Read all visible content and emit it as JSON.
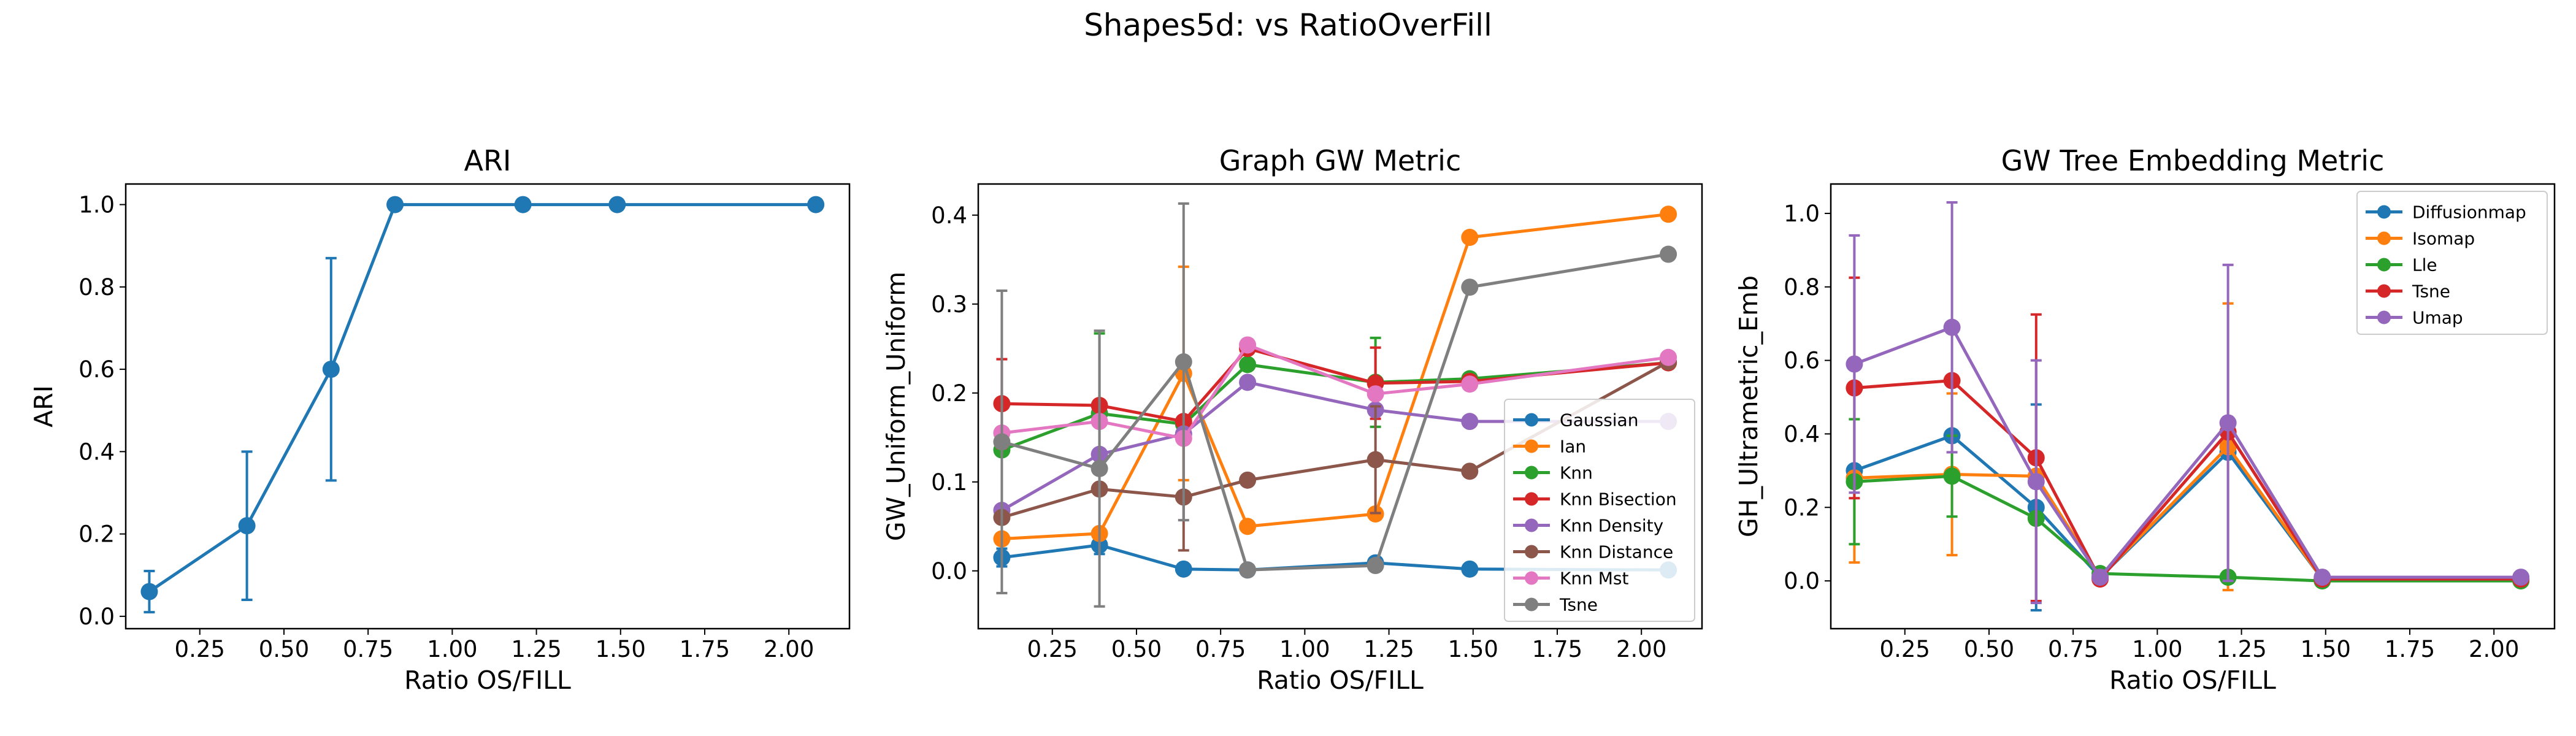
{
  "suptitle": "Shapes5d: vs RatioOverFill",
  "chart_data": [
    {
      "type": "line",
      "title": "ARI",
      "xlabel": "Ratio OS/FILL",
      "ylabel": "ARI",
      "xlim": [
        0.03,
        2.18
      ],
      "ylim": [
        -0.03,
        1.05
      ],
      "xticks": [
        0.25,
        0.5,
        0.75,
        1.0,
        1.25,
        1.5,
        1.75,
        2.0
      ],
      "xtick_labels": [
        "0.25",
        "0.50",
        "0.75",
        "1.00",
        "1.25",
        "1.50",
        "1.75",
        "2.00"
      ],
      "yticks": [
        0.0,
        0.2,
        0.4,
        0.6,
        0.8,
        1.0
      ],
      "ytick_labels": [
        "0.0",
        "0.2",
        "0.4",
        "0.6",
        "0.8",
        "1.0"
      ],
      "grid": false,
      "legend": null,
      "x": [
        0.1,
        0.39,
        0.64,
        0.83,
        1.21,
        1.49,
        2.08
      ],
      "series": [
        {
          "name": "",
          "color": "#1f77b4",
          "values": [
            0.06,
            0.22,
            0.6,
            1.0,
            1.0,
            1.0,
            1.0
          ],
          "err": [
            0.05,
            0.18,
            0.27,
            0,
            0,
            0,
            0
          ]
        }
      ]
    },
    {
      "type": "line",
      "title": "Graph GW Metric",
      "xlabel": "Ratio OS/FILL",
      "ylabel": "GW_Uniform_Uniform",
      "xlim": [
        0.03,
        2.18
      ],
      "ylim": [
        -0.065,
        0.435
      ],
      "xticks": [
        0.25,
        0.5,
        0.75,
        1.0,
        1.25,
        1.5,
        1.75,
        2.0
      ],
      "xtick_labels": [
        "0.25",
        "0.50",
        "0.75",
        "1.00",
        "1.25",
        "1.50",
        "1.75",
        "2.00"
      ],
      "yticks": [
        0.0,
        0.1,
        0.2,
        0.3,
        0.4
      ],
      "ytick_labels": [
        "0.0",
        "0.1",
        "0.2",
        "0.3",
        "0.4"
      ],
      "grid": false,
      "legend": "lower-right",
      "x": [
        0.1,
        0.39,
        0.64,
        0.83,
        1.21,
        1.49,
        2.08
      ],
      "series": [
        {
          "name": "Gaussian",
          "color": "#1f77b4",
          "values": [
            0.015,
            0.029,
            0.002,
            0.001,
            0.009,
            0.002,
            0.001
          ],
          "err": [
            0.01,
            0.01,
            0.0,
            0.0,
            0.0,
            0.0,
            0.0
          ]
        },
        {
          "name": "Ian",
          "color": "#ff7f0e",
          "values": [
            0.036,
            0.042,
            0.222,
            0.05,
            0.064,
            0.375,
            0.401
          ],
          "err": [
            0.0,
            0.0,
            0.12,
            0.0,
            0.0,
            0.0,
            0.0
          ]
        },
        {
          "name": "Knn",
          "color": "#2ca02c",
          "values": [
            0.136,
            0.177,
            0.165,
            0.232,
            0.212,
            0.216,
            0.234
          ],
          "err": [
            0.0,
            0.09,
            0.0,
            0.0,
            0.05,
            0.0,
            0.0
          ]
        },
        {
          "name": "Knn Bisection",
          "color": "#d62728",
          "values": [
            0.188,
            0.186,
            0.168,
            0.25,
            0.211,
            0.213,
            0.234
          ],
          "err": [
            0.05,
            0.0,
            0.0,
            0.0,
            0.04,
            0.0,
            0.0
          ]
        },
        {
          "name": "Knn Density",
          "color": "#9467bd",
          "values": [
            0.068,
            0.131,
            0.154,
            0.212,
            0.181,
            0.168,
            0.168
          ],
          "err": [
            0.0,
            0.0,
            0.0,
            0.0,
            0.0,
            0.0,
            0.0
          ]
        },
        {
          "name": "Knn Distance",
          "color": "#8c564b",
          "values": [
            0.06,
            0.092,
            0.083,
            0.102,
            0.125,
            0.112,
            0.235
          ],
          "err": [
            0.0,
            0.0,
            0.06,
            0.0,
            0.06,
            0.0,
            0.0
          ]
        },
        {
          "name": "Knn Mst",
          "color": "#e377c2",
          "values": [
            0.155,
            0.168,
            0.149,
            0.254,
            0.199,
            0.21,
            0.24
          ],
          "err": [
            0.0,
            0.0,
            0.0,
            0.0,
            0.0,
            0.0,
            0.0
          ]
        },
        {
          "name": "Tsne",
          "color": "#7f7f7f",
          "values": [
            0.145,
            0.115,
            0.235,
            0.001,
            0.006,
            0.319,
            0.356
          ],
          "err": [
            0.17,
            0.155,
            0.178,
            0.0,
            0.0,
            0.0,
            0.0
          ]
        }
      ]
    },
    {
      "type": "line",
      "title": "GW Tree Embedding Metric",
      "xlabel": "Ratio OS/FILL",
      "ylabel": "GH_Ultrametric_Emb",
      "xlim": [
        0.03,
        2.18
      ],
      "ylim": [
        -0.13,
        1.08
      ],
      "xticks": [
        0.25,
        0.5,
        0.75,
        1.0,
        1.25,
        1.5,
        1.75,
        2.0
      ],
      "xtick_labels": [
        "0.25",
        "0.50",
        "0.75",
        "1.00",
        "1.25",
        "1.50",
        "1.75",
        "2.00"
      ],
      "yticks": [
        0.0,
        0.2,
        0.4,
        0.6,
        0.8,
        1.0
      ],
      "ytick_labels": [
        "0.0",
        "0.2",
        "0.4",
        "0.6",
        "0.8",
        "1.0"
      ],
      "grid": false,
      "legend": "upper-right",
      "x": [
        0.1,
        0.39,
        0.64,
        0.83,
        1.21,
        1.49,
        2.08
      ],
      "series": [
        {
          "name": "Diffusionmap",
          "color": "#1f77b4",
          "values": [
            0.3,
            0.395,
            0.2,
            0.01,
            0.35,
            0.005,
            0.005
          ],
          "err": [
            0.0,
            0.0,
            0.28,
            0.0,
            0.0,
            0.0,
            0.0
          ]
        },
        {
          "name": "Isomap",
          "color": "#ff7f0e",
          "values": [
            0.28,
            0.29,
            0.285,
            0.01,
            0.365,
            0.005,
            0.005
          ],
          "err": [
            0.23,
            0.22,
            0.0,
            0.0,
            0.39,
            0.0,
            0.0
          ]
        },
        {
          "name": "Lle",
          "color": "#2ca02c",
          "values": [
            0.27,
            0.285,
            0.17,
            0.02,
            0.01,
            0.0,
            0.0
          ],
          "err": [
            0.17,
            0.11,
            0.0,
            0.0,
            0.0,
            0.0,
            0.0
          ]
        },
        {
          "name": "Tsne",
          "color": "#d62728",
          "values": [
            0.525,
            0.545,
            0.335,
            0.005,
            0.405,
            0.005,
            0.005
          ],
          "err": [
            0.3,
            0.0,
            0.39,
            0.0,
            0.0,
            0.0,
            0.0
          ]
        },
        {
          "name": "Umap",
          "color": "#9467bd",
          "values": [
            0.59,
            0.69,
            0.27,
            0.01,
            0.43,
            0.01,
            0.01
          ],
          "err": [
            0.35,
            0.34,
            0.33,
            0.0,
            0.43,
            0.0,
            0.0
          ]
        }
      ]
    }
  ]
}
